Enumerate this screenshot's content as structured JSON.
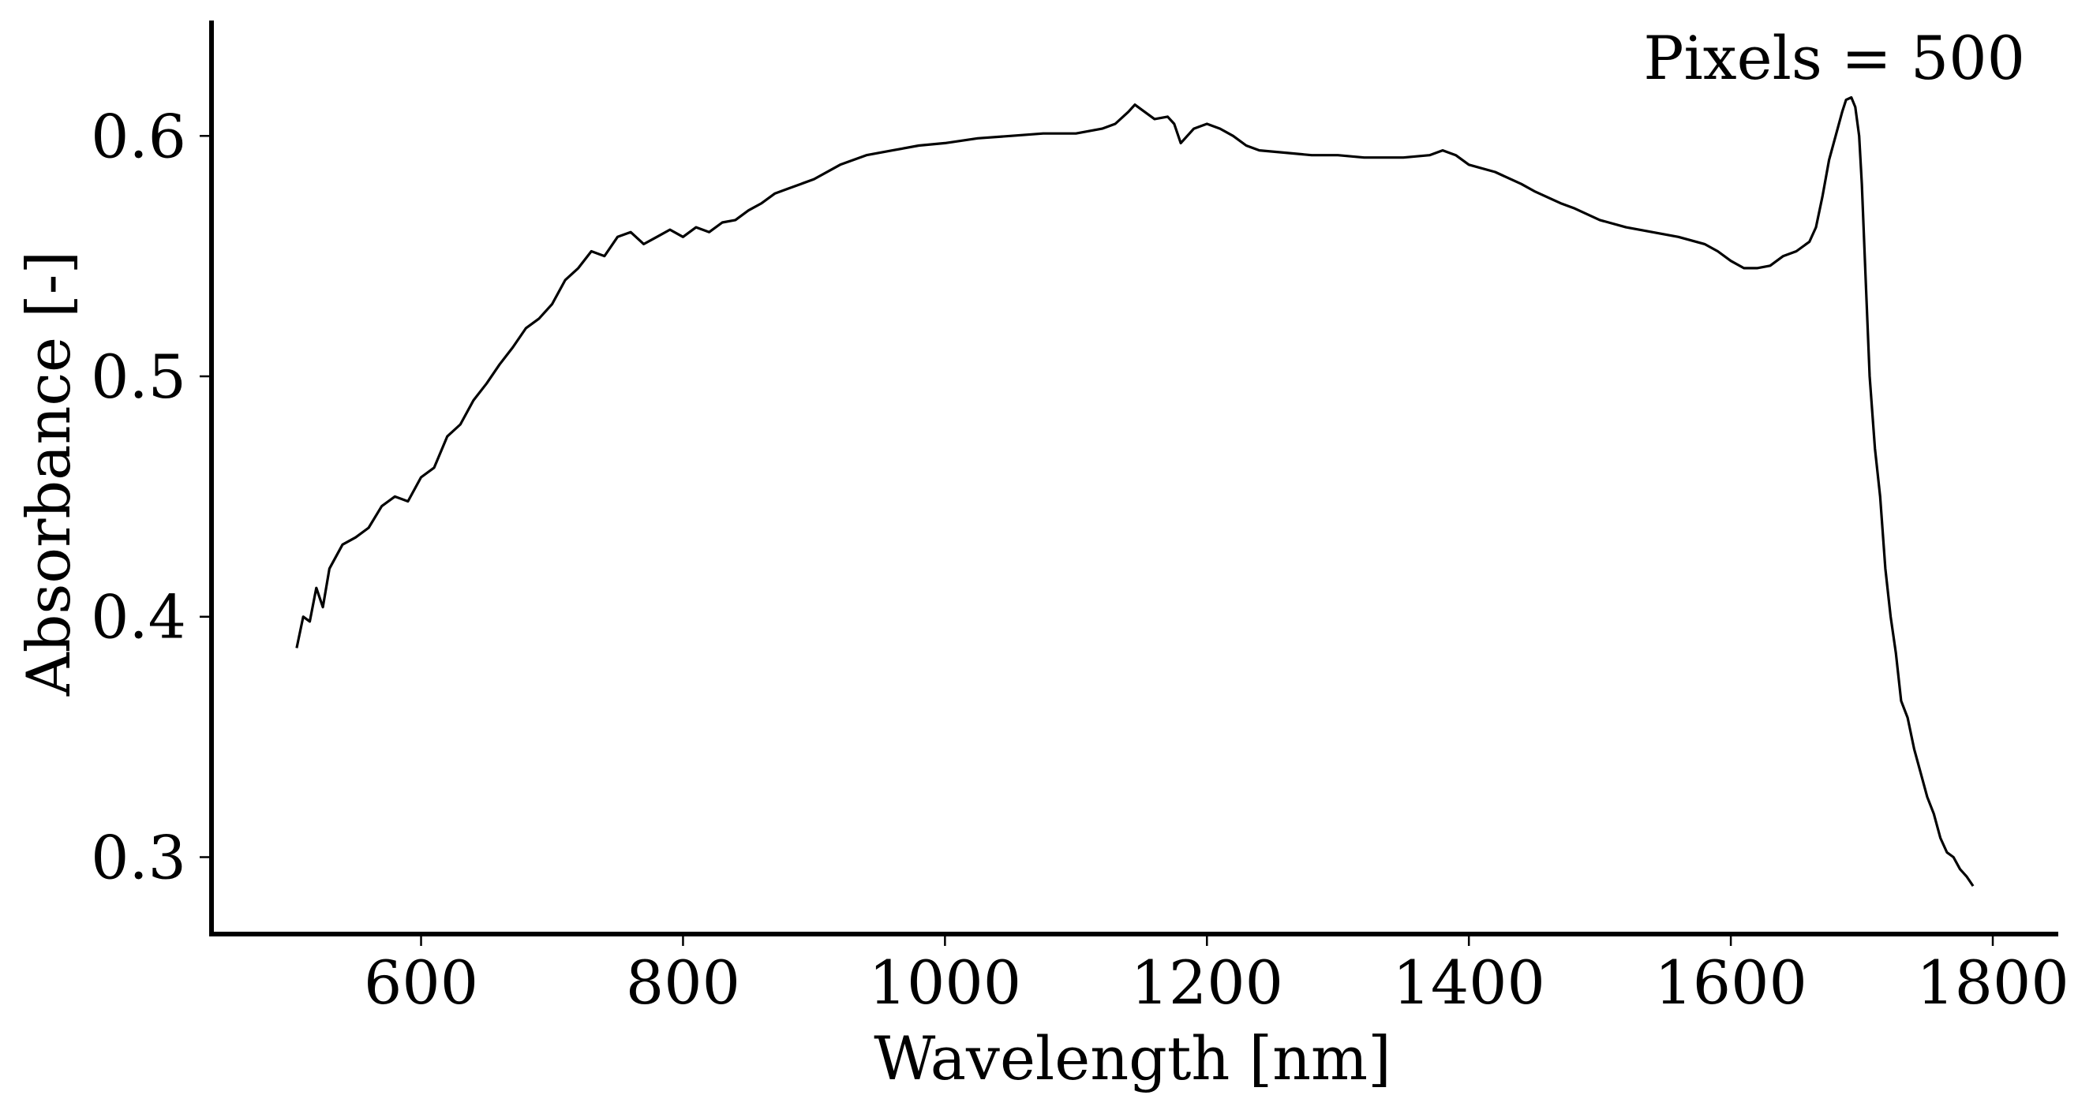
{
  "chart_data": {
    "type": "line",
    "title": "",
    "annotation": "Pixels = 500",
    "xlabel": "Wavelength [nm]",
    "ylabel": "Absorbance [-]",
    "xlim": [
      440,
      1850
    ],
    "ylim": [
      0.268,
      0.648
    ],
    "xticks": [
      600,
      800,
      1000,
      1200,
      1400,
      1600,
      1800
    ],
    "xtick_labels": [
      "600",
      "800",
      "1000",
      "1200",
      "1400",
      "1600",
      "1800"
    ],
    "yticks": [
      0.3,
      0.4,
      0.5,
      0.6
    ],
    "ytick_labels": [
      "0.3",
      "0.4",
      "0.5",
      "0.6"
    ],
    "grid": false,
    "series": [
      {
        "name": "absorbance",
        "color": "#000000",
        "x": [
          505,
          510,
          515,
          520,
          525,
          530,
          540,
          550,
          560,
          570,
          580,
          590,
          600,
          610,
          620,
          630,
          640,
          650,
          660,
          670,
          680,
          690,
          700,
          710,
          720,
          730,
          740,
          750,
          760,
          770,
          780,
          790,
          800,
          810,
          820,
          830,
          840,
          850,
          860,
          870,
          880,
          890,
          900,
          920,
          940,
          960,
          980,
          1000,
          1025,
          1050,
          1075,
          1100,
          1120,
          1130,
          1140,
          1145,
          1150,
          1160,
          1170,
          1175,
          1180,
          1190,
          1200,
          1210,
          1220,
          1230,
          1240,
          1260,
          1280,
          1300,
          1320,
          1350,
          1370,
          1380,
          1390,
          1400,
          1420,
          1440,
          1450,
          1470,
          1480,
          1500,
          1520,
          1540,
          1560,
          1580,
          1590,
          1600,
          1610,
          1620,
          1630,
          1640,
          1650,
          1660,
          1665,
          1670,
          1675,
          1680,
          1685,
          1688,
          1692,
          1695,
          1698,
          1700,
          1703,
          1706,
          1710,
          1714,
          1718,
          1722,
          1726,
          1730,
          1735,
          1740,
          1745,
          1750,
          1755,
          1760,
          1765,
          1770,
          1775,
          1780,
          1785
        ],
        "y": [
          0.387,
          0.4,
          0.398,
          0.412,
          0.404,
          0.42,
          0.43,
          0.433,
          0.437,
          0.446,
          0.45,
          0.448,
          0.458,
          0.462,
          0.475,
          0.48,
          0.49,
          0.497,
          0.505,
          0.512,
          0.52,
          0.524,
          0.53,
          0.54,
          0.545,
          0.552,
          0.55,
          0.558,
          0.56,
          0.555,
          0.558,
          0.561,
          0.558,
          0.562,
          0.56,
          0.564,
          0.565,
          0.569,
          0.572,
          0.576,
          0.578,
          0.58,
          0.582,
          0.588,
          0.592,
          0.594,
          0.596,
          0.597,
          0.599,
          0.6,
          0.601,
          0.601,
          0.603,
          0.605,
          0.61,
          0.613,
          0.611,
          0.607,
          0.608,
          0.605,
          0.597,
          0.603,
          0.605,
          0.603,
          0.6,
          0.596,
          0.594,
          0.593,
          0.592,
          0.592,
          0.591,
          0.591,
          0.592,
          0.594,
          0.592,
          0.588,
          0.585,
          0.58,
          0.577,
          0.572,
          0.57,
          0.565,
          0.562,
          0.56,
          0.558,
          0.555,
          0.552,
          0.548,
          0.545,
          0.545,
          0.546,
          0.55,
          0.552,
          0.556,
          0.562,
          0.575,
          0.59,
          0.6,
          0.61,
          0.615,
          0.616,
          0.612,
          0.6,
          0.58,
          0.54,
          0.5,
          0.47,
          0.45,
          0.42,
          0.4,
          0.385,
          0.365,
          0.358,
          0.345,
          0.335,
          0.325,
          0.318,
          0.308,
          0.302,
          0.3,
          0.295,
          0.292,
          0.288
        ]
      }
    ]
  }
}
